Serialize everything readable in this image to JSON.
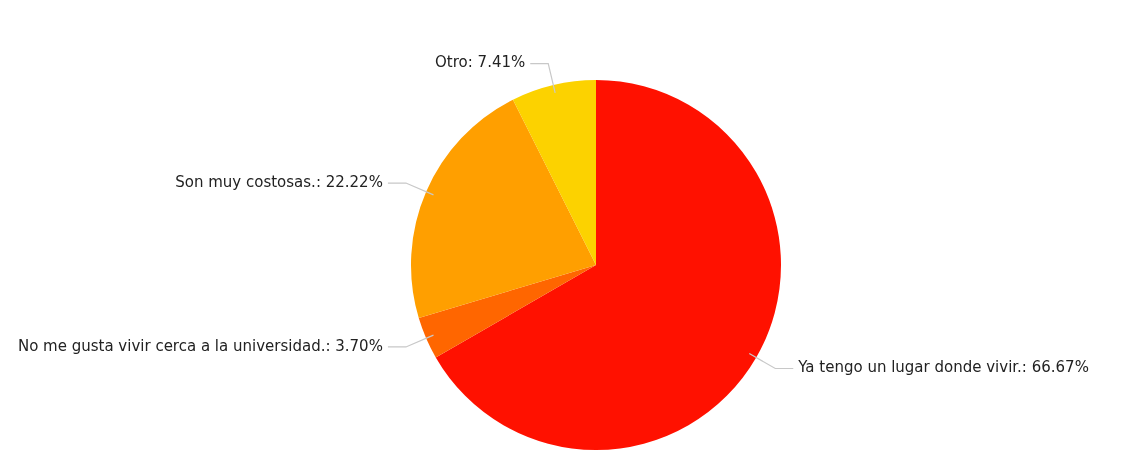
{
  "chart_data": {
    "type": "pie",
    "categories": [
      "Ya tengo un lugar donde vivir.",
      "No me gusta vivir cerca a la universidad.",
      "Son muy costosas.",
      "Otro"
    ],
    "values": [
      66.67,
      3.7,
      22.22,
      7.41
    ],
    "value_labels": [
      "66.67%",
      "3.70%",
      "22.22%",
      "7.41%"
    ],
    "colors": [
      "#ff1100",
      "#ff6600",
      "#ff9f00",
      "#fcd200"
    ],
    "legend": false
  }
}
